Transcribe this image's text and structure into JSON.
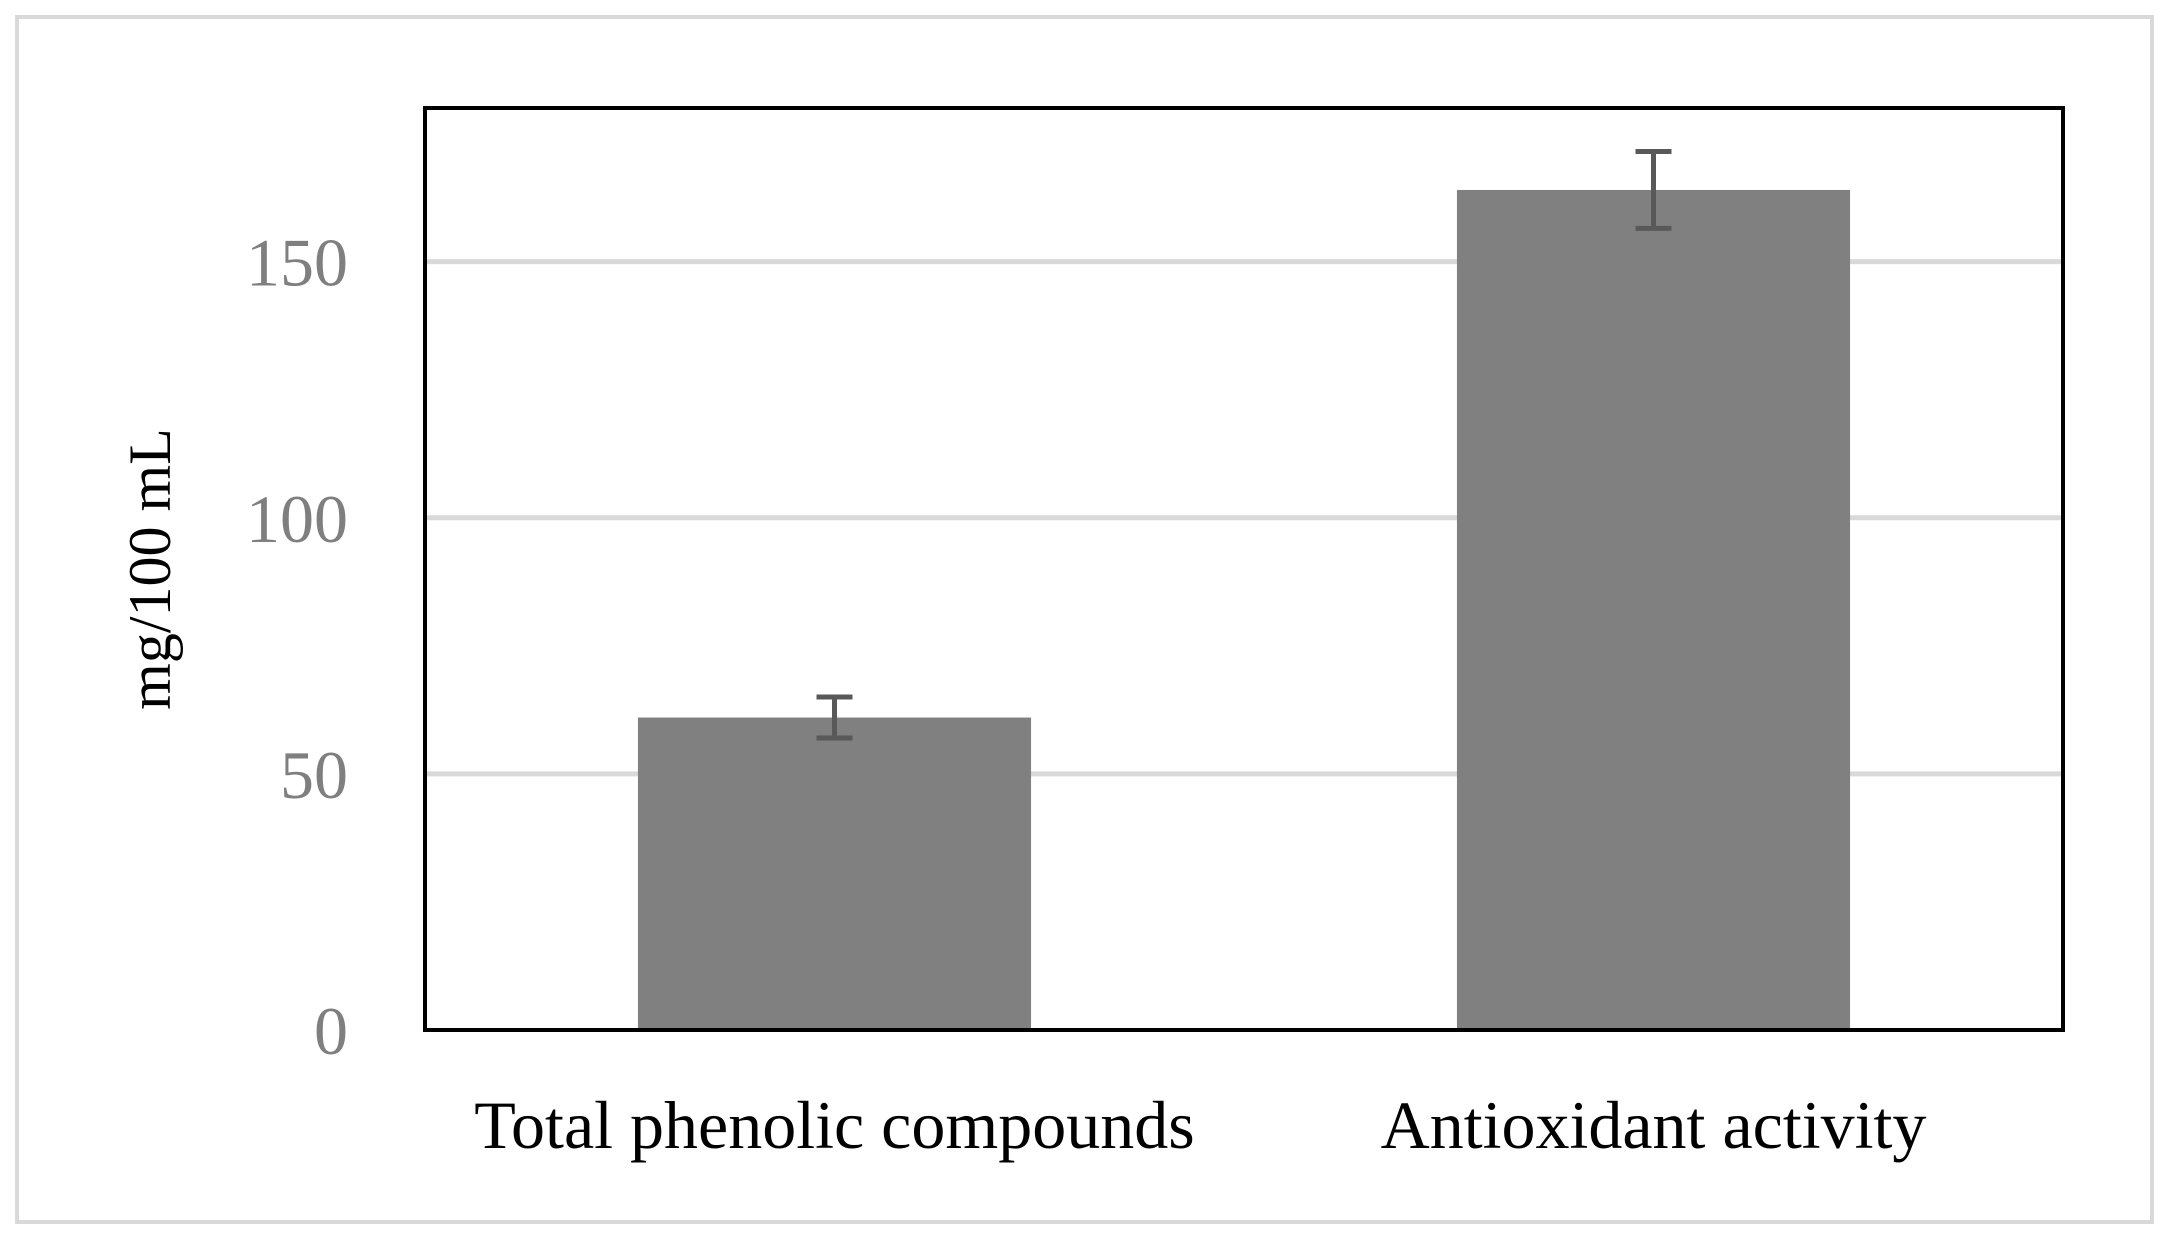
{
  "chart_data": {
    "type": "bar",
    "title": "",
    "xlabel": "",
    "ylabel": "mg/100 mL",
    "categories": [
      "Total phenolic compounds",
      "Antioxidant activity"
    ],
    "values": [
      61,
      164
    ],
    "errors": [
      4,
      7.5
    ],
    "ylim": [
      0,
      180
    ],
    "yticks": [
      0,
      50,
      100,
      150
    ],
    "ytick_labels": [
      "0",
      "50",
      "100",
      "150"
    ],
    "grid": true,
    "legend": "none",
    "colors": {
      "bar": "#808080",
      "error_bar": "#595959",
      "grid": "#d9d9d9",
      "tick_text": "#7f7f7f",
      "frame": "#000000",
      "outer_border": "#d9d9d9"
    }
  }
}
